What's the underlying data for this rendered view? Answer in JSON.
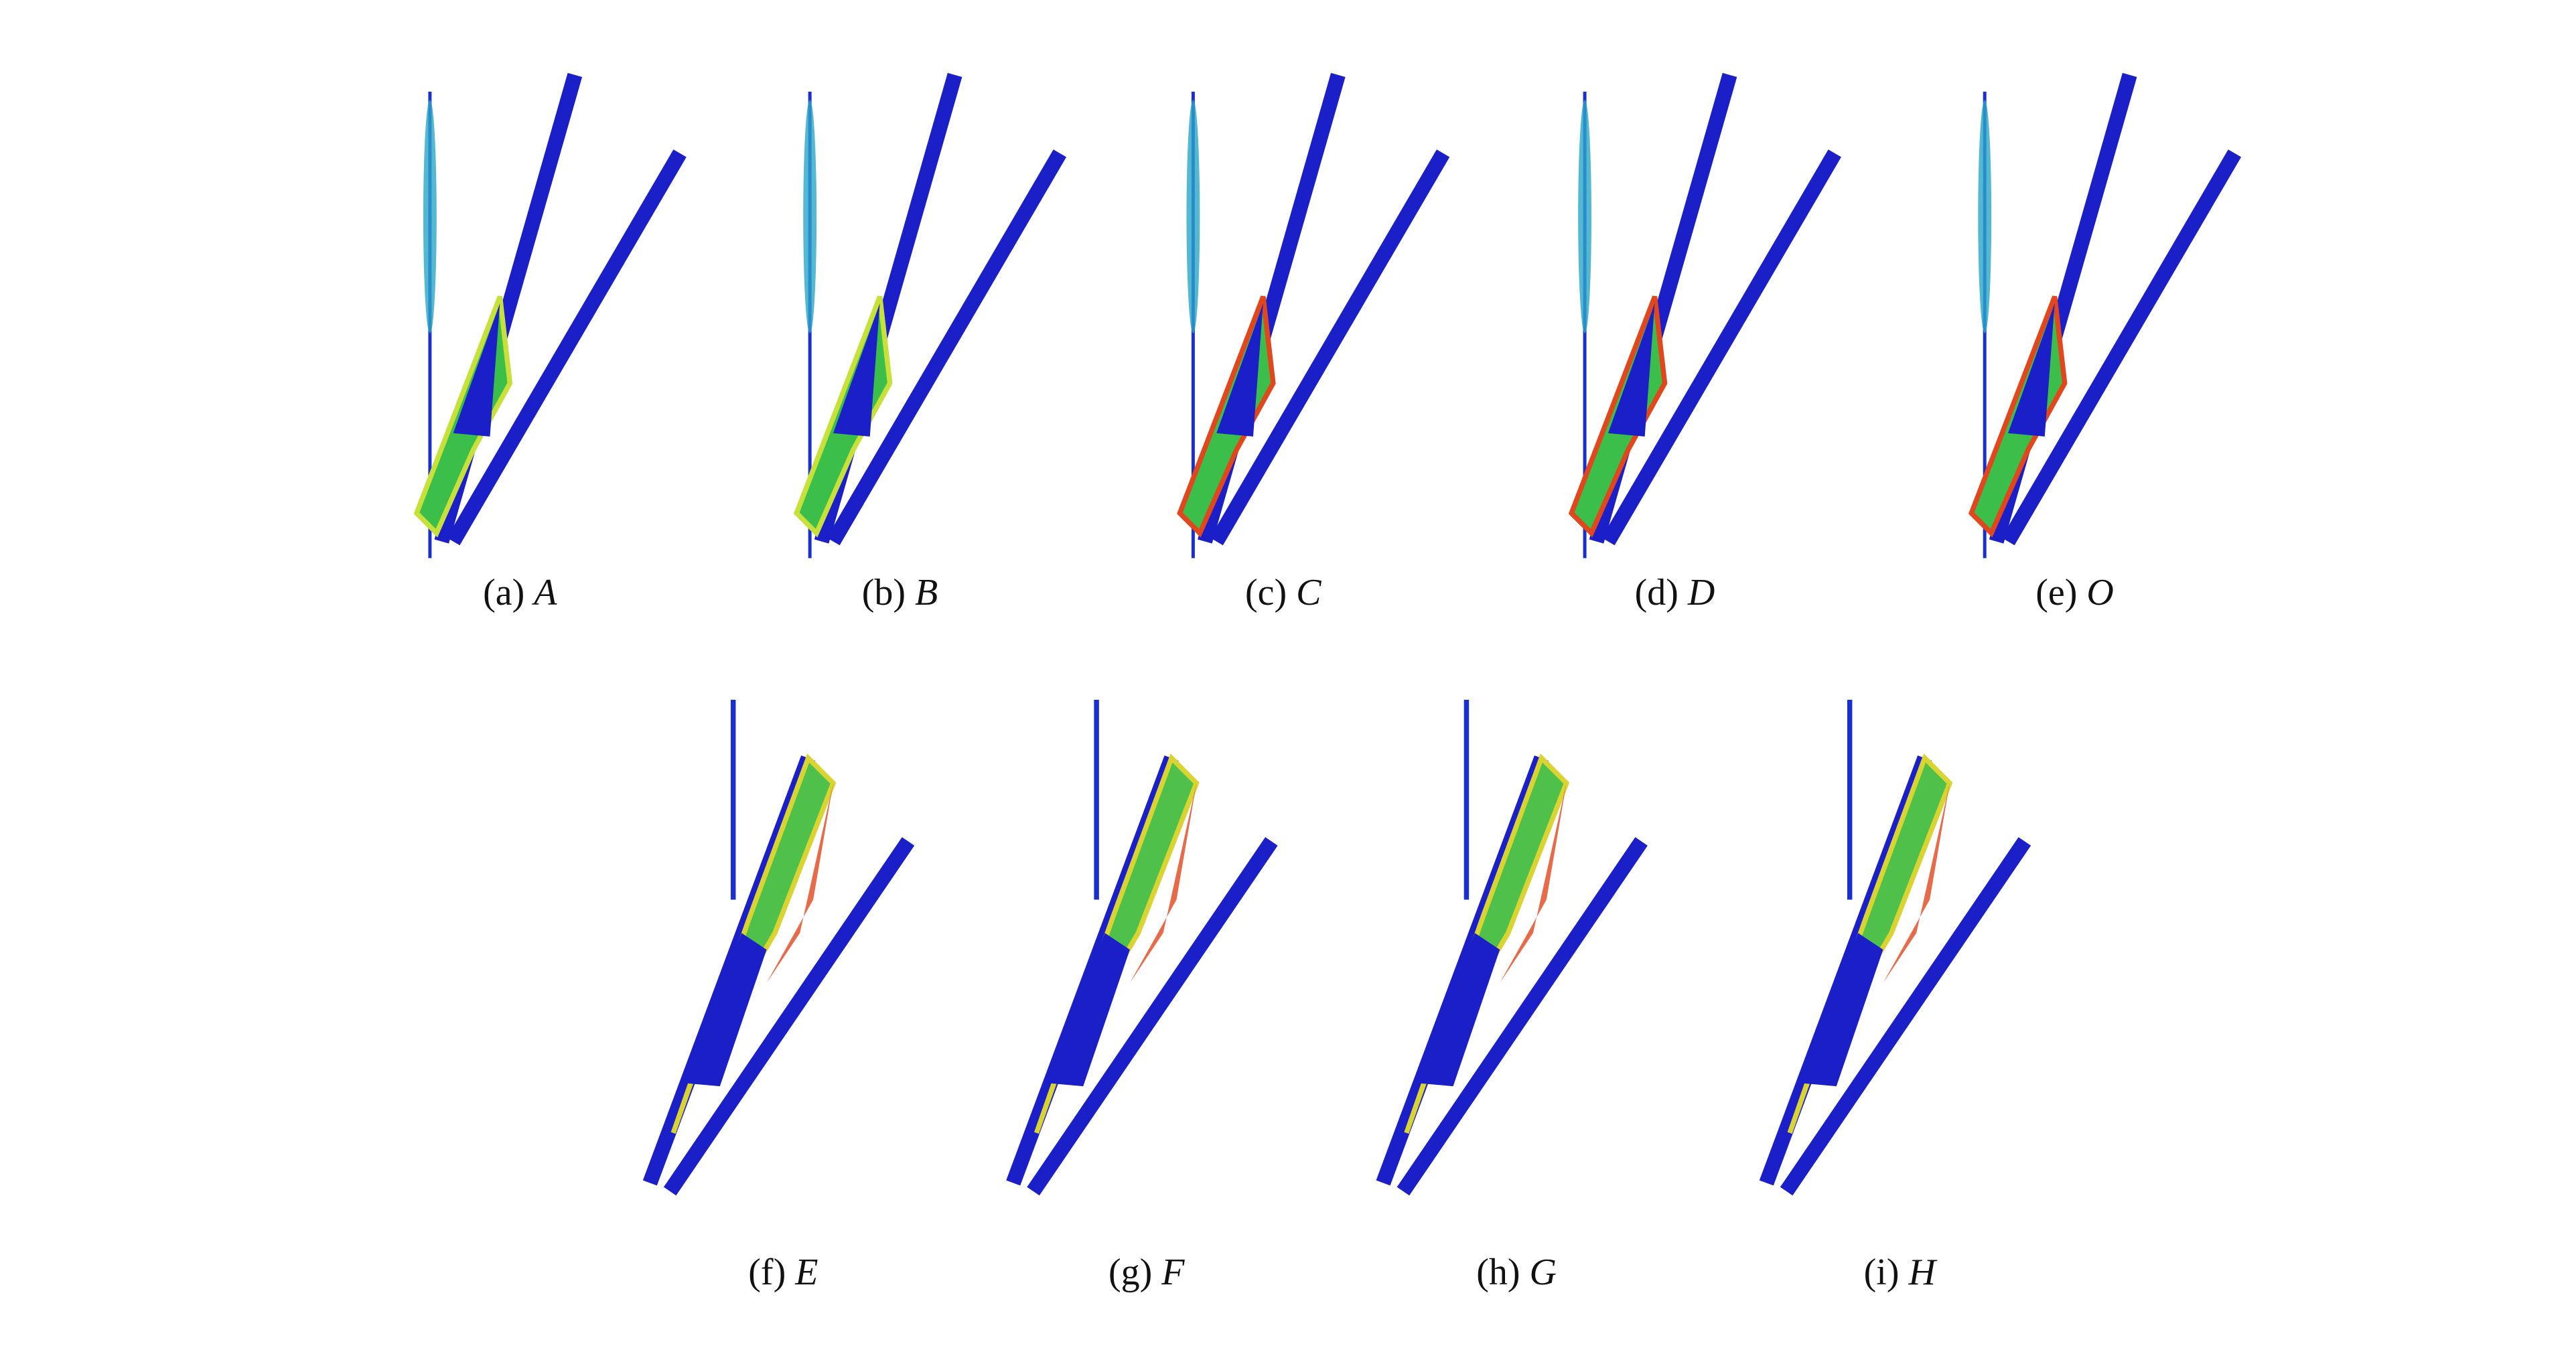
{
  "panels": [
    {
      "tag": "(a)",
      "name": "A"
    },
    {
      "tag": "(b)",
      "name": "B"
    },
    {
      "tag": "(c)",
      "name": "C"
    },
    {
      "tag": "(d)",
      "name": "D"
    },
    {
      "tag": "(e)",
      "name": "O"
    },
    {
      "tag": "(f)",
      "name": "E"
    },
    {
      "tag": "(g)",
      "name": "F"
    },
    {
      "tag": "(h)",
      "name": "G"
    },
    {
      "tag": "(i)",
      "name": "H"
    }
  ]
}
